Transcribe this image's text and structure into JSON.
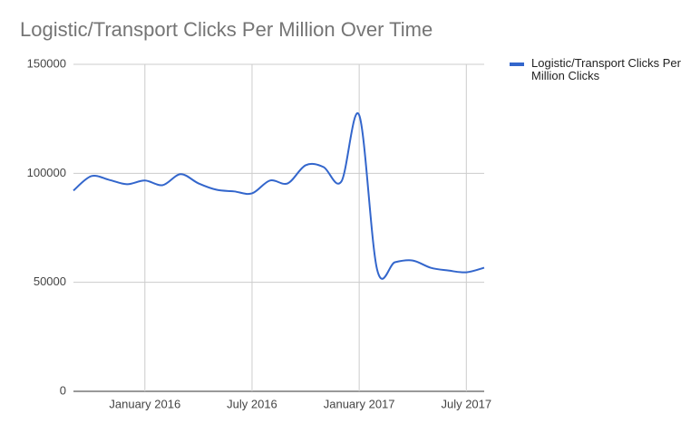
{
  "chart_data": {
    "type": "line",
    "title": "Logistic/Transport Clicks Per Million Over Time",
    "x": [
      "2015-09",
      "2015-10",
      "2015-11",
      "2015-12",
      "2016-01",
      "2016-02",
      "2016-03",
      "2016-04",
      "2016-05",
      "2016-06",
      "2016-07",
      "2016-08",
      "2016-09",
      "2016-10",
      "2016-11",
      "2016-12",
      "2017-01",
      "2017-02",
      "2017-03",
      "2017-04",
      "2017-05",
      "2017-06",
      "2017-07",
      "2017-08"
    ],
    "series": [
      {
        "name": "Logistic/Transport Clicks Per Million Clicks",
        "color": "#3366cc",
        "values": [
          92100,
          98700,
          97000,
          95000,
          96700,
          94600,
          99600,
          95400,
          92500,
          91700,
          90800,
          96700,
          95400,
          103700,
          102900,
          96200,
          126700,
          56000,
          59200,
          60000,
          56700,
          55400,
          54600,
          56700
        ]
      }
    ],
    "xlim": [
      "2015-09",
      "2017-08"
    ],
    "xticks": [
      {
        "value": "2016-01",
        "label": "January 2016"
      },
      {
        "value": "2016-07",
        "label": "July 2016"
      },
      {
        "value": "2017-01",
        "label": "January 2017"
      },
      {
        "value": "2017-07",
        "label": "July 2017"
      }
    ],
    "ylim": [
      0,
      150000
    ],
    "yticks": [
      0,
      50000,
      100000,
      150000
    ],
    "grid": true,
    "legend": "right"
  }
}
